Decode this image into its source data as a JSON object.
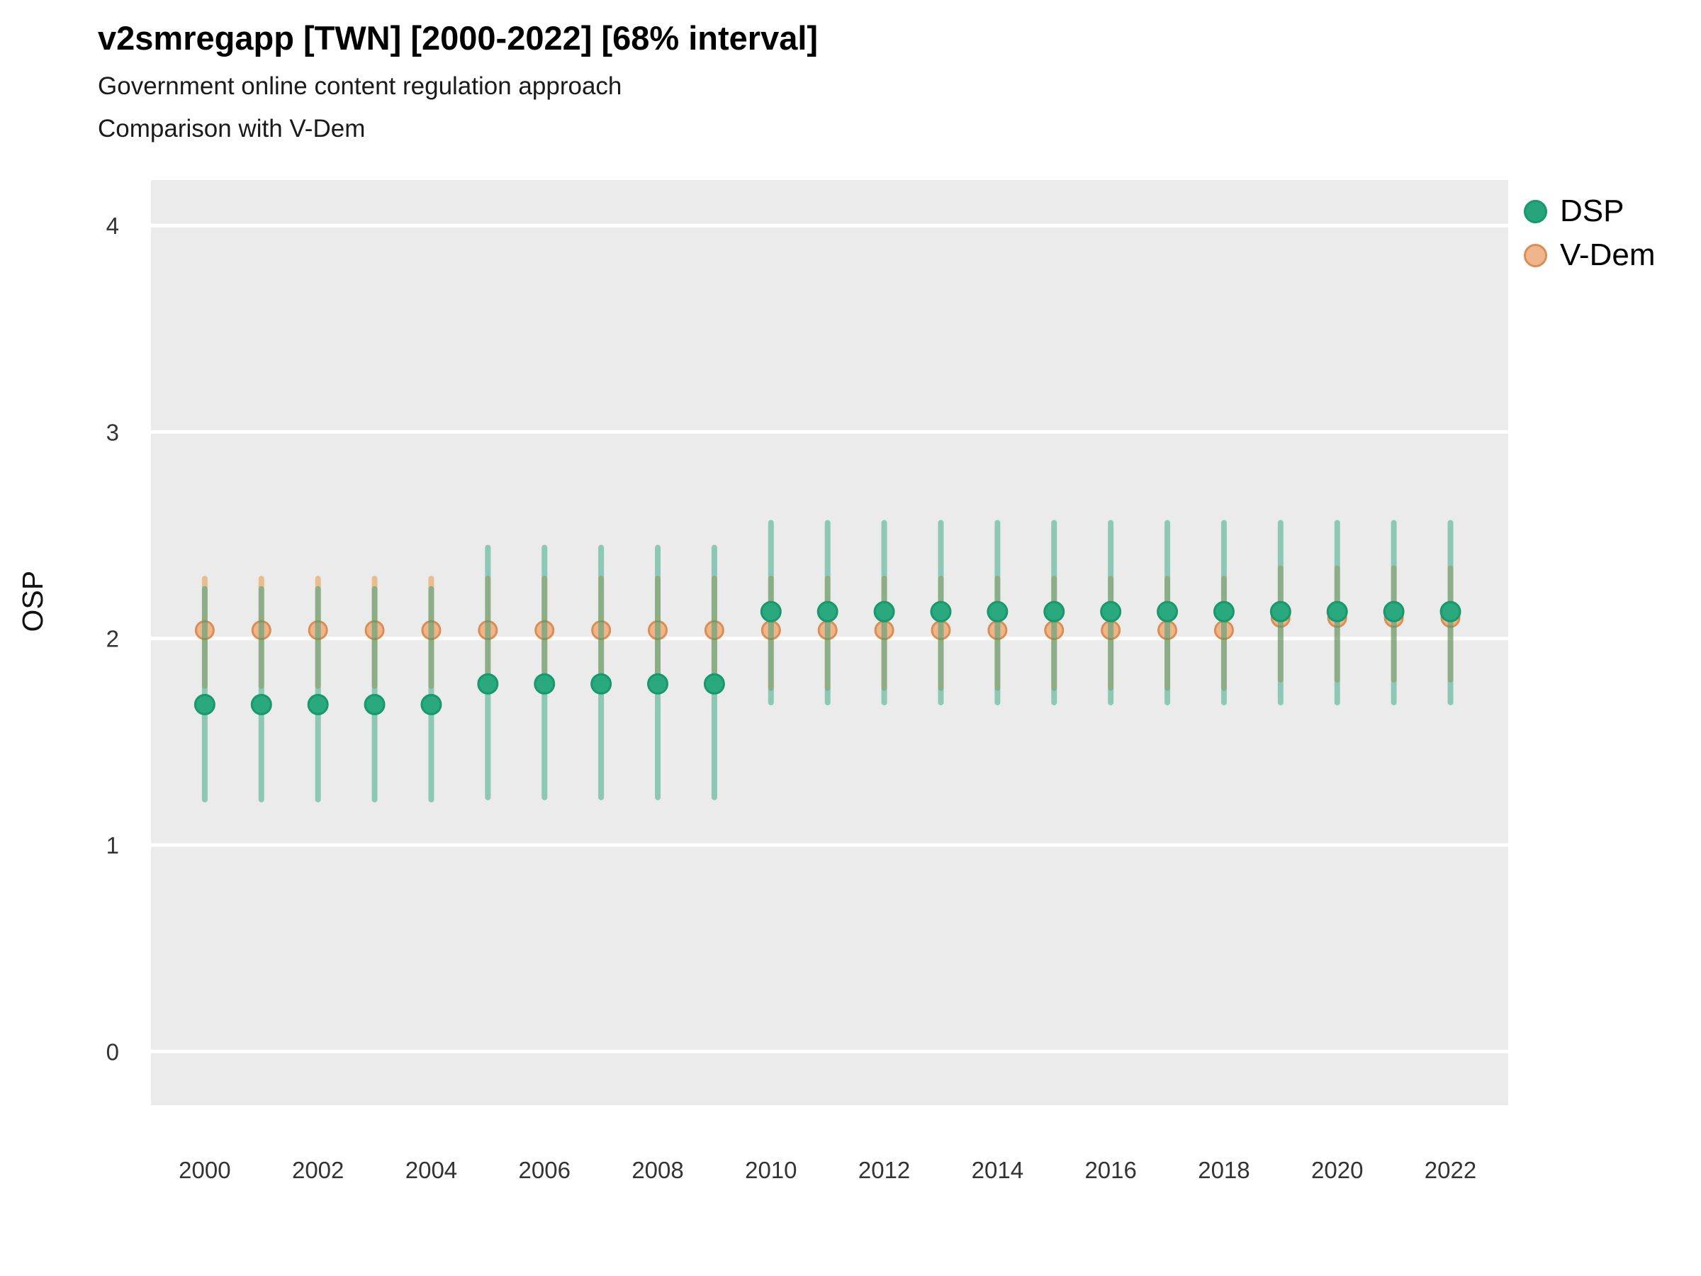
{
  "page": {
    "background": "#ffffff"
  },
  "header": {
    "title": "v2smregapp [TWN] [2000-2022] [68% interval]",
    "subtitle1": "Government online content regulation approach",
    "subtitle2": "Comparison with V-Dem"
  },
  "panel": {
    "bg": "#ebebeb",
    "grid": "#ffffff",
    "tick_label_color": "#333333",
    "axis_label_color": "#111111"
  },
  "legend": {
    "items": [
      {
        "label": "DSP",
        "fill": "#27a47d",
        "stroke": "#17996d"
      },
      {
        "label": "V-Dem",
        "fill": "#f0b58d",
        "stroke": "#da8e54"
      }
    ]
  },
  "chart_data": {
    "type": "pointrange",
    "title": "v2smregapp [TWN] [2000-2022] [68% interval]",
    "subtitle": [
      "Government online content regulation approach",
      "Comparison with V-Dem"
    ],
    "xlabel": "",
    "ylabel": "OSP",
    "interval": "68%",
    "xlim": [
      1999.05,
      2023.02
    ],
    "ylim": [
      -0.26,
      4.22
    ],
    "x_ticks": [
      2000,
      2002,
      2004,
      2006,
      2008,
      2010,
      2012,
      2014,
      2016,
      2018,
      2020,
      2022
    ],
    "y_ticks": [
      0,
      1,
      2,
      3,
      4
    ],
    "grid": "major-horizontal-only",
    "legend_position": "right-top",
    "series": [
      {
        "name": "DSP",
        "bar_color": "rgba(27,158,119,0.45)",
        "point_fill": "#2aa87e",
        "point_stroke": "#17996d",
        "point_radius": 13.5,
        "point_opacity": 1,
        "points": [
          {
            "year": 2000,
            "est": 1.68,
            "lo": 1.22,
            "hi": 2.24
          },
          {
            "year": 2001,
            "est": 1.68,
            "lo": 1.22,
            "hi": 2.24
          },
          {
            "year": 2002,
            "est": 1.68,
            "lo": 1.22,
            "hi": 2.24
          },
          {
            "year": 2003,
            "est": 1.68,
            "lo": 1.22,
            "hi": 2.24
          },
          {
            "year": 2004,
            "est": 1.68,
            "lo": 1.22,
            "hi": 2.24
          },
          {
            "year": 2005,
            "est": 1.78,
            "lo": 1.23,
            "hi": 2.44
          },
          {
            "year": 2006,
            "est": 1.78,
            "lo": 1.23,
            "hi": 2.44
          },
          {
            "year": 2007,
            "est": 1.78,
            "lo": 1.23,
            "hi": 2.44
          },
          {
            "year": 2008,
            "est": 1.78,
            "lo": 1.23,
            "hi": 2.44
          },
          {
            "year": 2009,
            "est": 1.78,
            "lo": 1.23,
            "hi": 2.44
          },
          {
            "year": 2010,
            "est": 2.13,
            "lo": 1.69,
            "hi": 2.56
          },
          {
            "year": 2011,
            "est": 2.13,
            "lo": 1.69,
            "hi": 2.56
          },
          {
            "year": 2012,
            "est": 2.13,
            "lo": 1.69,
            "hi": 2.56
          },
          {
            "year": 2013,
            "est": 2.13,
            "lo": 1.69,
            "hi": 2.56
          },
          {
            "year": 2014,
            "est": 2.13,
            "lo": 1.69,
            "hi": 2.56
          },
          {
            "year": 2015,
            "est": 2.13,
            "lo": 1.69,
            "hi": 2.56
          },
          {
            "year": 2016,
            "est": 2.13,
            "lo": 1.69,
            "hi": 2.56
          },
          {
            "year": 2017,
            "est": 2.13,
            "lo": 1.69,
            "hi": 2.56
          },
          {
            "year": 2018,
            "est": 2.13,
            "lo": 1.69,
            "hi": 2.56
          },
          {
            "year": 2019,
            "est": 2.13,
            "lo": 1.69,
            "hi": 2.56
          },
          {
            "year": 2020,
            "est": 2.13,
            "lo": 1.69,
            "hi": 2.56
          },
          {
            "year": 2021,
            "est": 2.13,
            "lo": 1.69,
            "hi": 2.56
          },
          {
            "year": 2022,
            "est": 2.13,
            "lo": 1.69,
            "hi": 2.56
          }
        ]
      },
      {
        "name": "V-Dem",
        "bar_color": "rgba(231,141,57,0.5)",
        "point_fill": "#eeb286",
        "point_stroke": "#da8e54",
        "point_radius": 12.5,
        "point_opacity": 0.95,
        "points": [
          {
            "year": 2000,
            "est": 2.04,
            "lo": 1.77,
            "hi": 2.29
          },
          {
            "year": 2001,
            "est": 2.04,
            "lo": 1.77,
            "hi": 2.29
          },
          {
            "year": 2002,
            "est": 2.04,
            "lo": 1.77,
            "hi": 2.29
          },
          {
            "year": 2003,
            "est": 2.04,
            "lo": 1.77,
            "hi": 2.29
          },
          {
            "year": 2004,
            "est": 2.04,
            "lo": 1.77,
            "hi": 2.29
          },
          {
            "year": 2005,
            "est": 2.04,
            "lo": 1.77,
            "hi": 2.29
          },
          {
            "year": 2006,
            "est": 2.04,
            "lo": 1.77,
            "hi": 2.29
          },
          {
            "year": 2007,
            "est": 2.04,
            "lo": 1.77,
            "hi": 2.29
          },
          {
            "year": 2008,
            "est": 2.04,
            "lo": 1.77,
            "hi": 2.29
          },
          {
            "year": 2009,
            "est": 2.04,
            "lo": 1.77,
            "hi": 2.29
          },
          {
            "year": 2010,
            "est": 2.04,
            "lo": 1.76,
            "hi": 2.29
          },
          {
            "year": 2011,
            "est": 2.04,
            "lo": 1.76,
            "hi": 2.29
          },
          {
            "year": 2012,
            "est": 2.04,
            "lo": 1.76,
            "hi": 2.29
          },
          {
            "year": 2013,
            "est": 2.04,
            "lo": 1.76,
            "hi": 2.29
          },
          {
            "year": 2014,
            "est": 2.04,
            "lo": 1.76,
            "hi": 2.29
          },
          {
            "year": 2015,
            "est": 2.04,
            "lo": 1.76,
            "hi": 2.29
          },
          {
            "year": 2016,
            "est": 2.04,
            "lo": 1.76,
            "hi": 2.29
          },
          {
            "year": 2017,
            "est": 2.04,
            "lo": 1.76,
            "hi": 2.29
          },
          {
            "year": 2018,
            "est": 2.04,
            "lo": 1.76,
            "hi": 2.29
          },
          {
            "year": 2019,
            "est": 2.1,
            "lo": 1.8,
            "hi": 2.34
          },
          {
            "year": 2020,
            "est": 2.1,
            "lo": 1.8,
            "hi": 2.34
          },
          {
            "year": 2021,
            "est": 2.1,
            "lo": 1.8,
            "hi": 2.34
          },
          {
            "year": 2022,
            "est": 2.1,
            "lo": 1.8,
            "hi": 2.34
          }
        ]
      }
    ]
  }
}
